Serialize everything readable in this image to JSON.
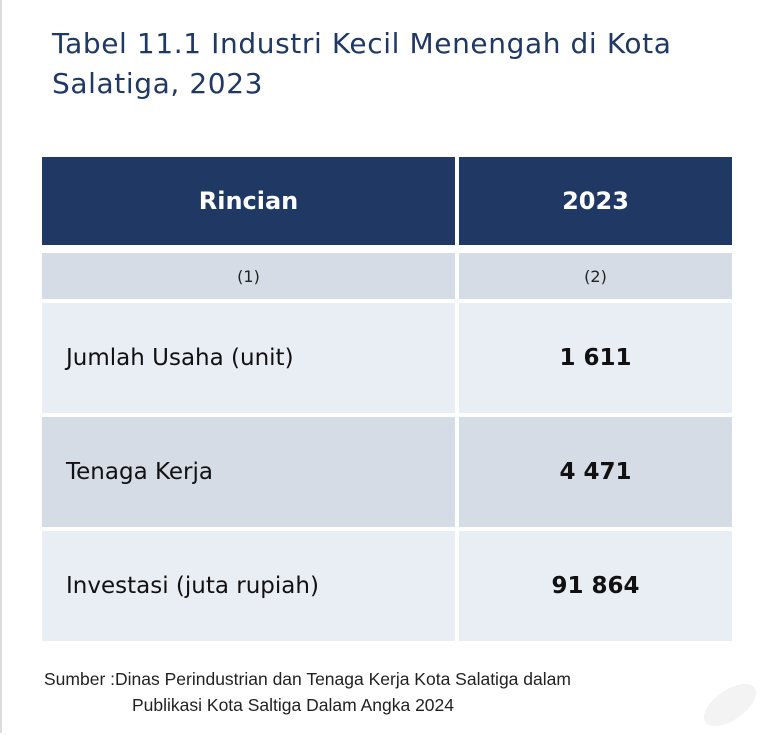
{
  "title": "Tabel 11.1 Industri Kecil Menengah di Kota Salatiga, 2023",
  "table": {
    "headers": [
      "Rincian",
      "2023"
    ],
    "column_numbers": [
      "(1)",
      "(2)"
    ],
    "rows": [
      {
        "label": "Jumlah Usaha (unit)",
        "value": "1 611"
      },
      {
        "label": "Tenaga Kerja",
        "value": "4 471"
      },
      {
        "label": "Investasi (juta rupiah)",
        "value": "91 864"
      }
    ]
  },
  "source": {
    "line1": "Sumber :Dinas Perindustrian dan Tenaga Kerja Kota Salatiga dalam",
    "line2": "Publikasi Kota Saltiga Dalam Angka 2024"
  },
  "colors": {
    "header_bg": "#1f3864",
    "title_text": "#1f3864",
    "row_light": "#e9edf4",
    "row_dark": "#d6dce5"
  }
}
